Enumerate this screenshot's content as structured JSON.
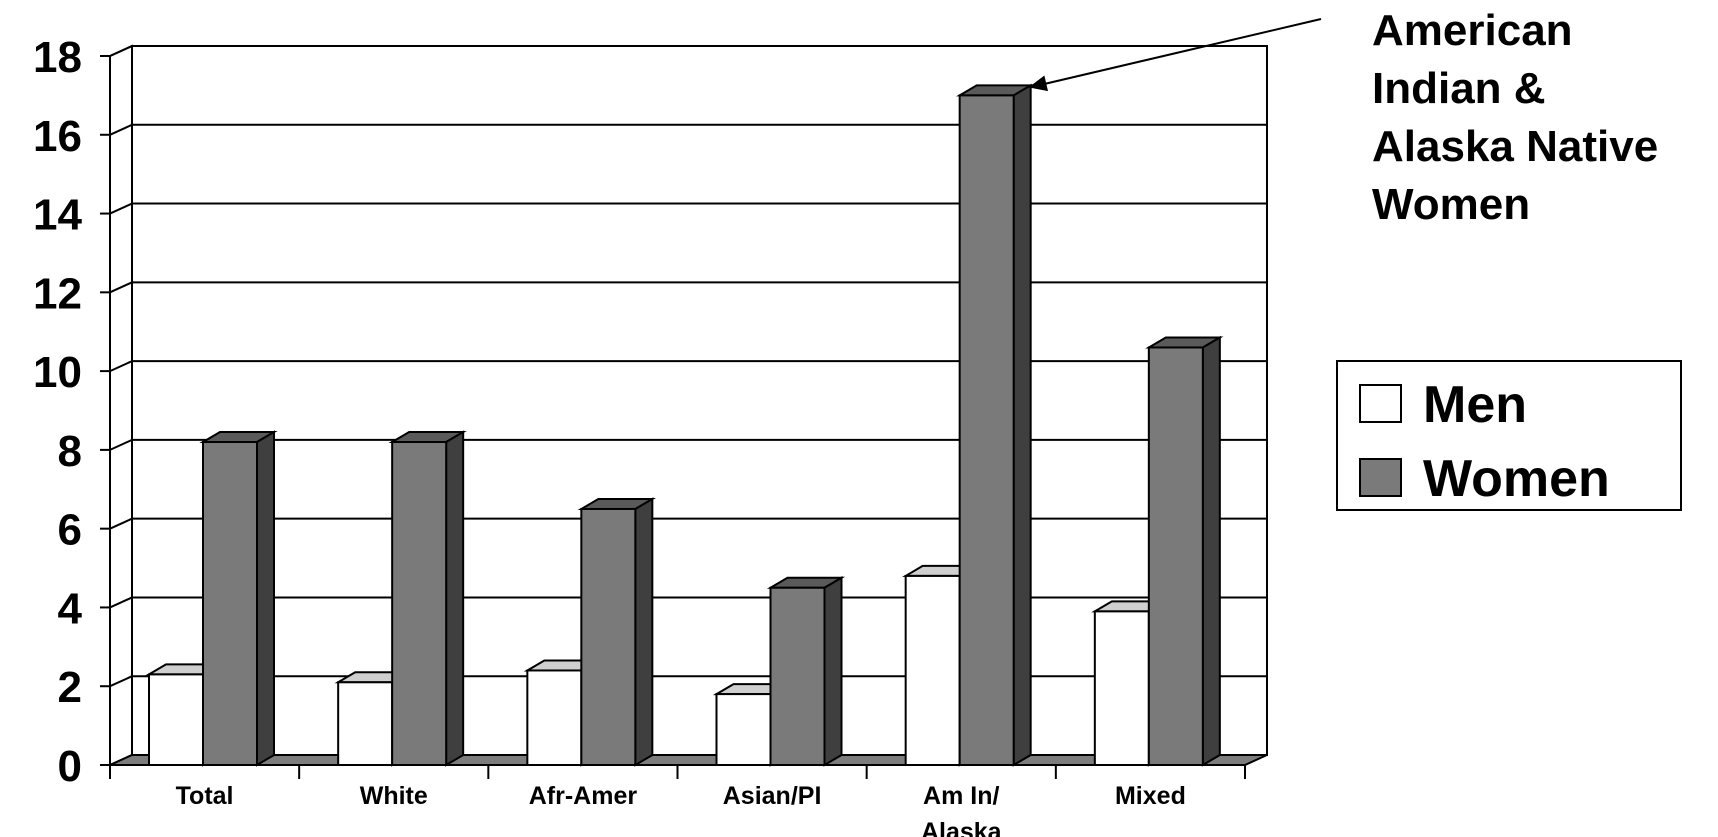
{
  "chart_data": {
    "type": "bar",
    "title": "",
    "xlabel": "",
    "ylabel": "",
    "ylim": [
      0,
      18
    ],
    "yticks": [
      "0",
      "2",
      "4",
      "6",
      "8",
      "10",
      "12",
      "14",
      "16",
      "18"
    ],
    "grid": "horizontal",
    "style": "3d-clustered",
    "categories": [
      [
        "Total"
      ],
      [
        "White"
      ],
      [
        "Afr-Amer"
      ],
      [
        "Asian/PI"
      ],
      [
        "Am In/",
        "Alaska"
      ],
      [
        "Mixed"
      ]
    ],
    "series": [
      {
        "name": "Men",
        "color": "#ffffff",
        "values": [
          2.3,
          2.1,
          2.4,
          1.8,
          4.8,
          3.9
        ]
      },
      {
        "name": "Women",
        "color": "#7a7a7a",
        "values": [
          8.2,
          8.2,
          6.5,
          4.5,
          17.0,
          10.6
        ]
      }
    ],
    "legend": {
      "position": "right",
      "items": [
        "Men",
        "Women"
      ]
    },
    "annotation": {
      "lines": [
        "American",
        "Indian &",
        "Alaska Native",
        "Women"
      ],
      "target_category_index": 4,
      "target_series_index": 1
    }
  }
}
